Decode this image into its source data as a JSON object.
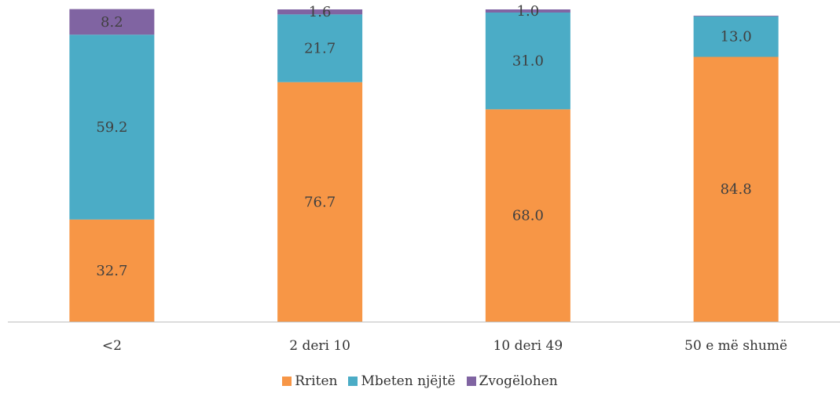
{
  "chart_data": {
    "type": "bar",
    "stacked": true,
    "categories": [
      "<2",
      "2 deri 10",
      "10 deri 49",
      "50 e më shumë"
    ],
    "series": [
      {
        "name": "Rriten",
        "color": "#F79646",
        "values": [
          32.7,
          76.7,
          68.0,
          84.8
        ]
      },
      {
        "name": "Mbeten njëjtë",
        "color": "#4BACC6",
        "values": [
          59.2,
          21.7,
          31.0,
          13.0
        ]
      },
      {
        "name": "Zvogëlohen",
        "color": "#8064A2",
        "values": [
          8.2,
          1.6,
          1.0,
          0.2
        ]
      }
    ],
    "value_labels": [
      [
        "32.7",
        "76.7",
        "68.0",
        "84.8"
      ],
      [
        "59.2",
        "21.7",
        "31.0",
        "13.0"
      ],
      [
        "8.2",
        "1.6",
        "1.0",
        ""
      ]
    ],
    "ylim": [
      0,
      100
    ],
    "grid": false,
    "legend_position": "bottom"
  }
}
